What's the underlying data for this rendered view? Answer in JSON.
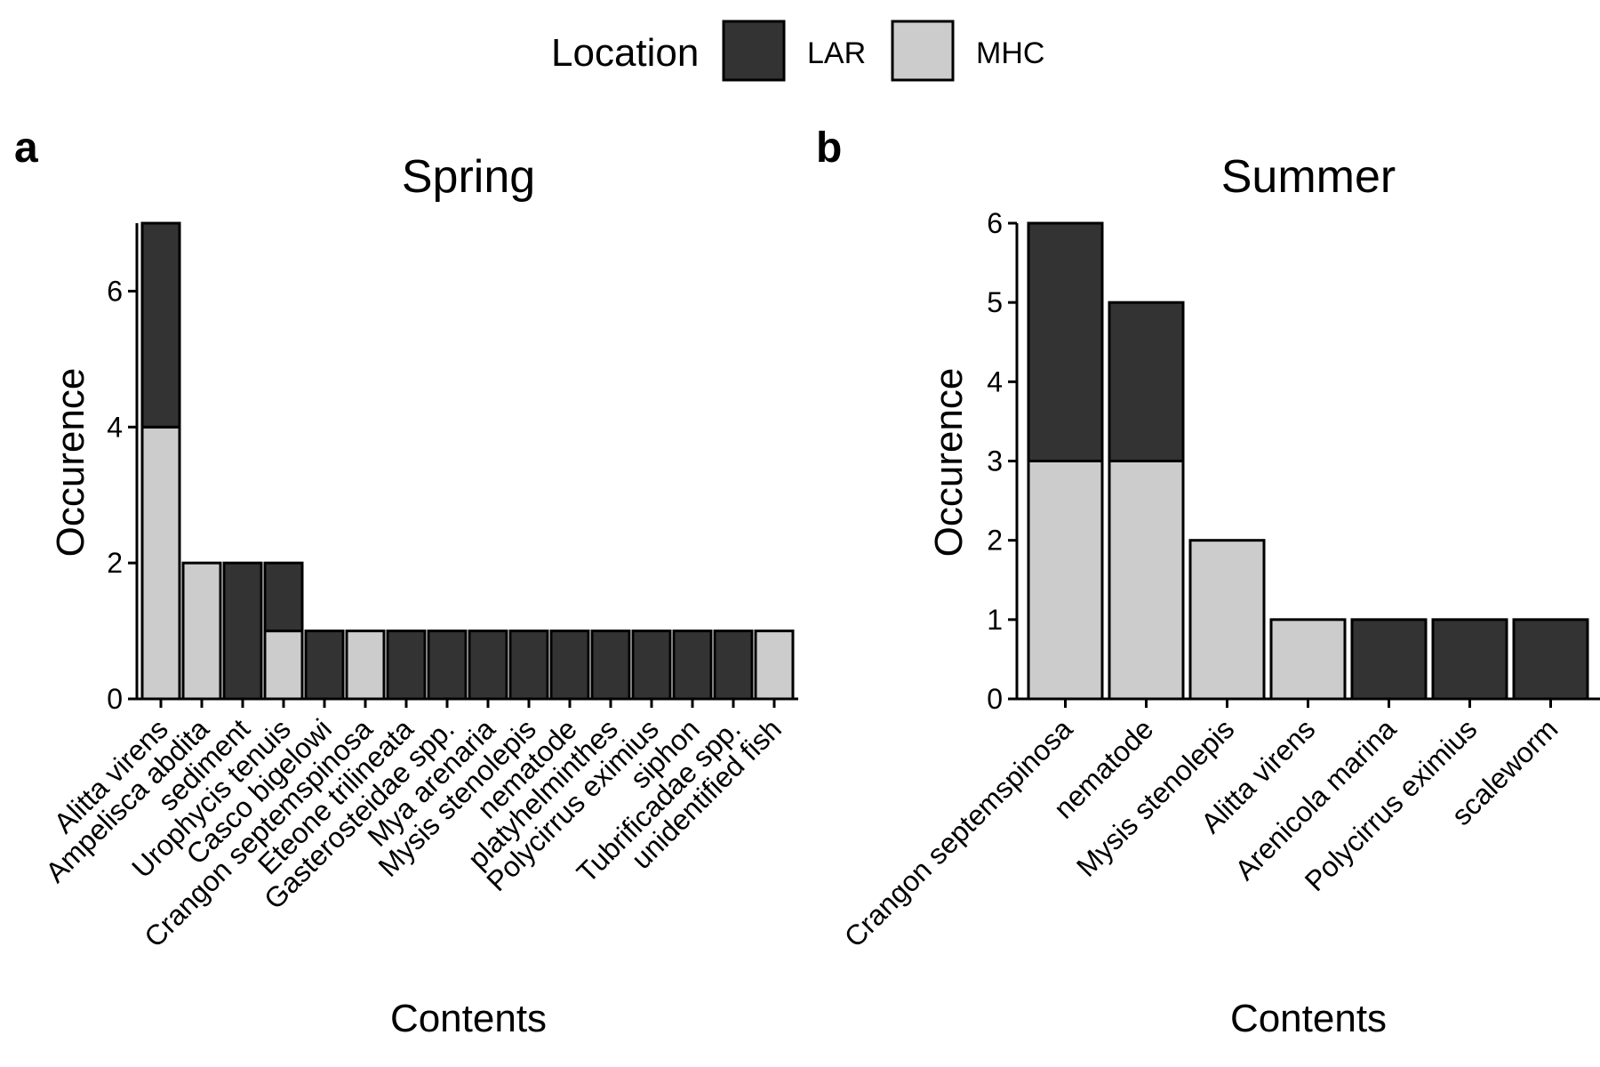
{
  "legend": {
    "title": "Location",
    "entries": [
      {
        "label": "LAR",
        "color": "#333333"
      },
      {
        "label": "MHC",
        "color": "#cccccc"
      }
    ]
  },
  "colors": {
    "LAR": "#333333",
    "MHC": "#cccccc",
    "outline": "#000000"
  },
  "chart_data": [
    {
      "type": "bar",
      "stacked": true,
      "panel": "a",
      "title": "Spring",
      "xlabel": "Contents",
      "ylabel": "Occurence",
      "ylim": [
        0,
        7
      ],
      "yticks": [
        0,
        2,
        4,
        6
      ],
      "categories": [
        "Alitta virens",
        "Ampelisca abdita",
        "sediment",
        "Urophycis tenuis",
        "Casco bigelowi",
        "Crangon septemspinosa",
        "Eteone trilineata",
        "Gasterosteidae spp.",
        "Mya arenaria",
        "Mysis stenolepis",
        "nematode",
        "platyhelminthes",
        "Polycirrus eximius",
        "siphon",
        "Tubrificadae spp.",
        "unidentified fish"
      ],
      "series": [
        {
          "name": "MHC",
          "values": [
            4,
            2,
            0,
            1,
            0,
            1,
            0,
            0,
            0,
            0,
            0,
            0,
            0,
            0,
            0,
            1
          ]
        },
        {
          "name": "LAR",
          "values": [
            3,
            0,
            2,
            1,
            1,
            0,
            1,
            1,
            1,
            1,
            1,
            1,
            1,
            1,
            1,
            0
          ]
        }
      ]
    },
    {
      "type": "bar",
      "stacked": true,
      "panel": "b",
      "title": "Summer",
      "xlabel": "Contents",
      "ylabel": "Occurence",
      "ylim": [
        0,
        6
      ],
      "yticks": [
        0,
        1,
        2,
        3,
        4,
        5,
        6
      ],
      "categories": [
        "Crangon septemspinosa",
        "nematode",
        "Mysis stenolepis",
        "Alitta virens",
        "Arenicola marina",
        "Polycirrus eximius",
        "scaleworm"
      ],
      "series": [
        {
          "name": "MHC",
          "values": [
            3,
            3,
            2,
            1,
            0,
            0,
            0
          ]
        },
        {
          "name": "LAR",
          "values": [
            3,
            2,
            0,
            0,
            1,
            1,
            1
          ]
        }
      ]
    }
  ]
}
